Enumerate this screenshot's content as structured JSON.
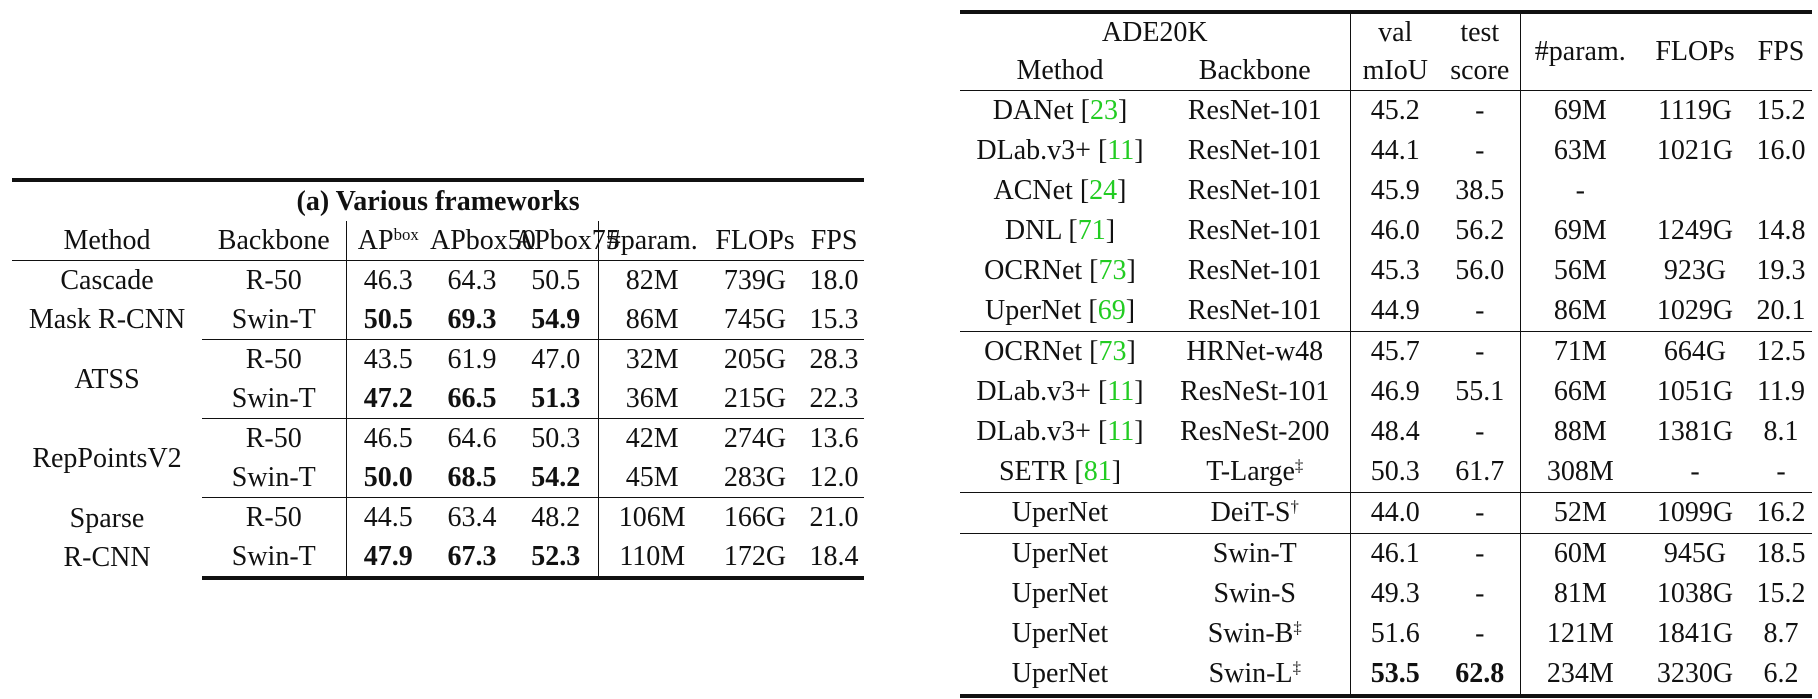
{
  "left_table": {
    "caption": "(a) Various frameworks",
    "headers": {
      "method": "Method",
      "backbone": "Backbone",
      "ap": "AP",
      "ap_sup": "box",
      "ap50": "AP",
      "ap50_sup": "box",
      "ap50_sub": "50",
      "ap75": "AP",
      "ap75_sup": "box",
      "ap75_sub": "75",
      "param": "#param.",
      "flops": "FLOPs",
      "fps": "FPS"
    },
    "groups": [
      {
        "method_line1": "Cascade",
        "method_line2": "Mask R-CNN",
        "rows": [
          {
            "backbone": "R-50",
            "ap": "46.3",
            "ap50": "64.3",
            "ap75": "50.5",
            "param": "82M",
            "flops": "739G",
            "fps": "18.0"
          },
          {
            "backbone": "Swin-T",
            "ap": "50.5",
            "ap50": "69.3",
            "ap75": "54.9",
            "param": "86M",
            "flops": "745G",
            "fps": "15.3"
          }
        ]
      },
      {
        "method_line1": "ATSS",
        "method_line2": "",
        "rows": [
          {
            "backbone": "R-50",
            "ap": "43.5",
            "ap50": "61.9",
            "ap75": "47.0",
            "param": "32M",
            "flops": "205G",
            "fps": "28.3"
          },
          {
            "backbone": "Swin-T",
            "ap": "47.2",
            "ap50": "66.5",
            "ap75": "51.3",
            "param": "36M",
            "flops": "215G",
            "fps": "22.3"
          }
        ]
      },
      {
        "method_line1": "RepPointsV2",
        "method_line2": "",
        "rows": [
          {
            "backbone": "R-50",
            "ap": "46.5",
            "ap50": "64.6",
            "ap75": "50.3",
            "param": "42M",
            "flops": "274G",
            "fps": "13.6"
          },
          {
            "backbone": "Swin-T",
            "ap": "50.0",
            "ap50": "68.5",
            "ap75": "54.2",
            "param": "45M",
            "flops": "283G",
            "fps": "12.0"
          }
        ]
      },
      {
        "method_line1": "Sparse",
        "method_line2": "R-CNN",
        "rows": [
          {
            "backbone": "R-50",
            "ap": "44.5",
            "ap50": "63.4",
            "ap75": "48.2",
            "param": "106M",
            "flops": "166G",
            "fps": "21.0"
          },
          {
            "backbone": "Swin-T",
            "ap": "47.9",
            "ap50": "67.3",
            "ap75": "52.3",
            "param": "110M",
            "flops": "172G",
            "fps": "18.4"
          }
        ]
      }
    ]
  },
  "right_table": {
    "headers": {
      "dataset": "ADE20K",
      "method": "Method",
      "backbone": "Backbone",
      "val_top": "val",
      "val_bottom": "mIoU",
      "test_top": "test",
      "test_bottom": "score",
      "param": "#param.",
      "flops": "FLOPs",
      "fps": "FPS"
    },
    "rows": [
      {
        "method": "DANet ",
        "ref": "23",
        "backbone": "ResNet-101",
        "backbone_sup": "",
        "val": "45.2",
        "test": "-",
        "param": "69M",
        "flops": "1119G",
        "fps": "15.2"
      },
      {
        "method": "DLab.v3+ ",
        "ref": "11",
        "backbone": "ResNet-101",
        "backbone_sup": "",
        "val": "44.1",
        "test": "-",
        "param": "63M",
        "flops": "1021G",
        "fps": "16.0"
      },
      {
        "method": "ACNet ",
        "ref": "24",
        "backbone": "ResNet-101",
        "backbone_sup": "",
        "val": "45.9",
        "test": "38.5",
        "param": "-",
        "flops": "",
        "fps": ""
      },
      {
        "method": "DNL ",
        "ref": "71",
        "backbone": "ResNet-101",
        "backbone_sup": "",
        "val": "46.0",
        "test": "56.2",
        "param": "69M",
        "flops": "1249G",
        "fps": "14.8"
      },
      {
        "method": "OCRNet ",
        "ref": "73",
        "backbone": "ResNet-101",
        "backbone_sup": "",
        "val": "45.3",
        "test": "56.0",
        "param": "56M",
        "flops": "923G",
        "fps": "19.3"
      },
      {
        "method": "UperNet ",
        "ref": "69",
        "backbone": "ResNet-101",
        "backbone_sup": "",
        "val": "44.9",
        "test": "-",
        "param": "86M",
        "flops": "1029G",
        "fps": "20.1"
      },
      {
        "method": "OCRNet ",
        "ref": "73",
        "backbone": "HRNet-w48",
        "backbone_sup": "",
        "val": "45.7",
        "test": "-",
        "param": "71M",
        "flops": "664G",
        "fps": "12.5"
      },
      {
        "method": "DLab.v3+ ",
        "ref": "11",
        "backbone": "ResNeSt-101",
        "backbone_sup": "",
        "val": "46.9",
        "test": "55.1",
        "param": "66M",
        "flops": "1051G",
        "fps": "11.9"
      },
      {
        "method": "DLab.v3+ ",
        "ref": "11",
        "backbone": "ResNeSt-200",
        "backbone_sup": "",
        "val": "48.4",
        "test": "-",
        "param": "88M",
        "flops": "1381G",
        "fps": "8.1"
      },
      {
        "method": "SETR ",
        "ref": "81",
        "backbone": "T-Large",
        "backbone_sup": "‡",
        "val": "50.3",
        "test": "61.7",
        "param": "308M",
        "flops": "-",
        "fps": "-"
      },
      {
        "method": "UperNet",
        "ref": "",
        "backbone": "DeiT-S",
        "backbone_sup": "†",
        "val": "44.0",
        "test": "-",
        "param": "52M",
        "flops": "1099G",
        "fps": "16.2"
      },
      {
        "method": "UperNet",
        "ref": "",
        "backbone": "Swin-T",
        "backbone_sup": "",
        "val": "46.1",
        "test": "-",
        "param": "60M",
        "flops": "945G",
        "fps": "18.5"
      },
      {
        "method": "UperNet",
        "ref": "",
        "backbone": "Swin-S",
        "backbone_sup": "",
        "val": "49.3",
        "test": "-",
        "param": "81M",
        "flops": "1038G",
        "fps": "15.2"
      },
      {
        "method": "UperNet",
        "ref": "",
        "backbone": "Swin-B",
        "backbone_sup": "‡",
        "val": "51.6",
        "test": "-",
        "param": "121M",
        "flops": "1841G",
        "fps": "8.7"
      },
      {
        "method": "UperNet",
        "ref": "",
        "backbone": "Swin-L",
        "backbone_sup": "‡",
        "val": "53.5",
        "test": "62.8",
        "param": "234M",
        "flops": "3230G",
        "fps": "6.2"
      }
    ]
  },
  "colors": {
    "reference_link": "#22cc22",
    "text": "#111111"
  }
}
